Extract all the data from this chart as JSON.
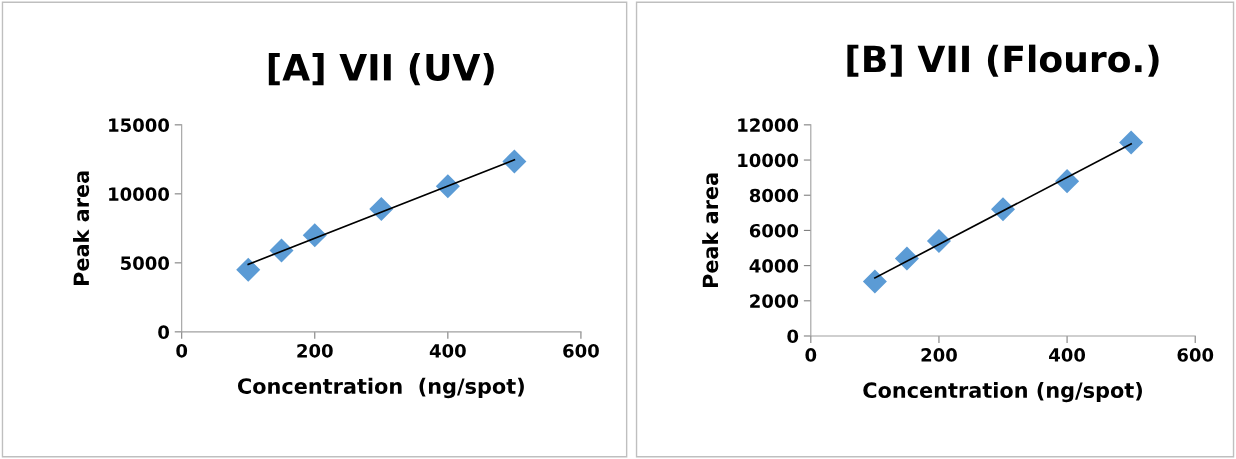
{
  "chart_data": [
    {
      "type": "scatter",
      "title": "[A] VII (UV)",
      "xlabel": "Concentration  (ng/spot)",
      "ylabel": "Peak area",
      "xlim": [
        0,
        600
      ],
      "xticks": [
        0,
        200,
        400,
        600
      ],
      "ylim": [
        0,
        15000
      ],
      "yticks": [
        0,
        5000,
        10000,
        15000
      ],
      "grid": false,
      "marker": "diamond",
      "series": [
        {
          "color": "#5b9bd5",
          "x": [
            100,
            150,
            200,
            300,
            400,
            500
          ],
          "values": [
            4500,
            5900,
            7000,
            8900,
            10550,
            12350
          ]
        },
        {
          "type": "line",
          "color": "#000000",
          "marker": "none",
          "line_style": "solid",
          "x": [
            100,
            500
          ],
          "values": [
            4890,
            12460
          ]
        }
      ]
    },
    {
      "type": "scatter",
      "title": "[B] VII (Flouro.)",
      "xlabel": "Concentration (ng/spot)",
      "ylabel": "Peak area",
      "xlim": [
        0,
        600
      ],
      "xticks": [
        0,
        200,
        400,
        600
      ],
      "ylim": [
        0,
        12000
      ],
      "yticks": [
        0,
        2000,
        4000,
        6000,
        8000,
        10000,
        12000
      ],
      "grid": false,
      "marker": "diamond",
      "series": [
        {
          "color": "#5b9bd5",
          "x": [
            100,
            150,
            200,
            300,
            400,
            500
          ],
          "values": [
            3100,
            4400,
            5400,
            7200,
            8800,
            11000
          ]
        },
        {
          "type": "line",
          "color": "#000000",
          "marker": "none",
          "line_style": "solid",
          "x": [
            100,
            500
          ],
          "values": [
            3300,
            10920
          ]
        }
      ]
    }
  ]
}
